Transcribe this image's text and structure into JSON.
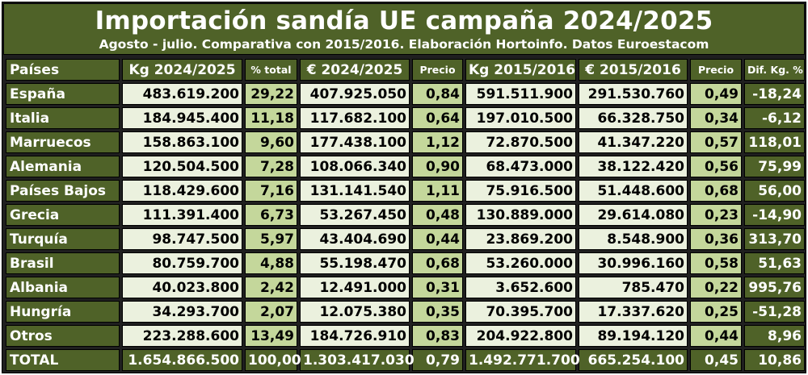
{
  "header": {
    "title": "Importación sandía UE campaña 2024/2025",
    "subtitle": "Agosto - julio. Comparativa con 2015/2016. Elaboración Hortoinfo. Datos Euroestacom"
  },
  "columns": [
    "Países",
    "Kg 2024/2025",
    "% total",
    "€ 2024/2025",
    "Precio",
    "Kg 2015/2016",
    "€ 2015/2016",
    "Precio",
    "Dif. Kg. %"
  ],
  "colors": {
    "dark_green": "#4f6228",
    "light_green": "#ebf1de",
    "mid_green": "#c4d79b"
  },
  "chart_data": {
    "type": "table",
    "title": "Importación sandía UE campaña 2024/2025",
    "subtitle": "Agosto - julio. Comparativa con 2015/2016. Elaboración Hortoinfo. Datos Euroestacom",
    "rows": [
      [
        "España",
        "483.619.200",
        "29,22",
        "407.925.050",
        "0,84",
        "591.511.900",
        "291.530.760",
        "0,49",
        "-18,24"
      ],
      [
        "Italia",
        "184.945.400",
        "11,18",
        "117.682.100",
        "0,64",
        "197.010.500",
        "66.328.750",
        "0,34",
        "-6,12"
      ],
      [
        "Marruecos",
        "158.863.100",
        "9,60",
        "177.438.100",
        "1,12",
        "72.870.500",
        "41.347.220",
        "0,57",
        "118,01"
      ],
      [
        "Alemania",
        "120.504.500",
        "7,28",
        "108.066.340",
        "0,90",
        "68.473.000",
        "38.122.420",
        "0,56",
        "75,99"
      ],
      [
        "Países Bajos",
        "118.429.600",
        "7,16",
        "131.141.540",
        "1,11",
        "75.916.500",
        "51.448.600",
        "0,68",
        "56,00"
      ],
      [
        "Grecia",
        "111.391.400",
        "6,73",
        "53.267.450",
        "0,48",
        "130.889.000",
        "29.614.080",
        "0,23",
        "-14,90"
      ],
      [
        "Turquía",
        "98.747.500",
        "5,97",
        "43.404.690",
        "0,44",
        "23.869.200",
        "8.548.900",
        "0,36",
        "313,70"
      ],
      [
        "Brasil",
        "80.759.700",
        "4,88",
        "55.198.470",
        "0,68",
        "53.260.000",
        "30.996.160",
        "0,58",
        "51,63"
      ],
      [
        "Albania",
        "40.023.800",
        "2,42",
        "12.491.000",
        "0,31",
        "3.652.600",
        "785.470",
        "0,22",
        "995,76"
      ],
      [
        "Hungría",
        "34.293.700",
        "2,07",
        "12.075.380",
        "0,35",
        "70.395.700",
        "17.337.620",
        "0,25",
        "-51,28"
      ],
      [
        "Otros",
        "223.288.600",
        "13,49",
        "184.726.910",
        "0,83",
        "204.922.800",
        "89.194.120",
        "0,44",
        "8,96"
      ]
    ],
    "total": [
      "TOTAL",
      "1.654.866.500",
      "100,00",
      "1.303.417.030",
      "0,79",
      "1.492.771.700",
      "665.254.100",
      "0,45",
      "10,86"
    ]
  }
}
